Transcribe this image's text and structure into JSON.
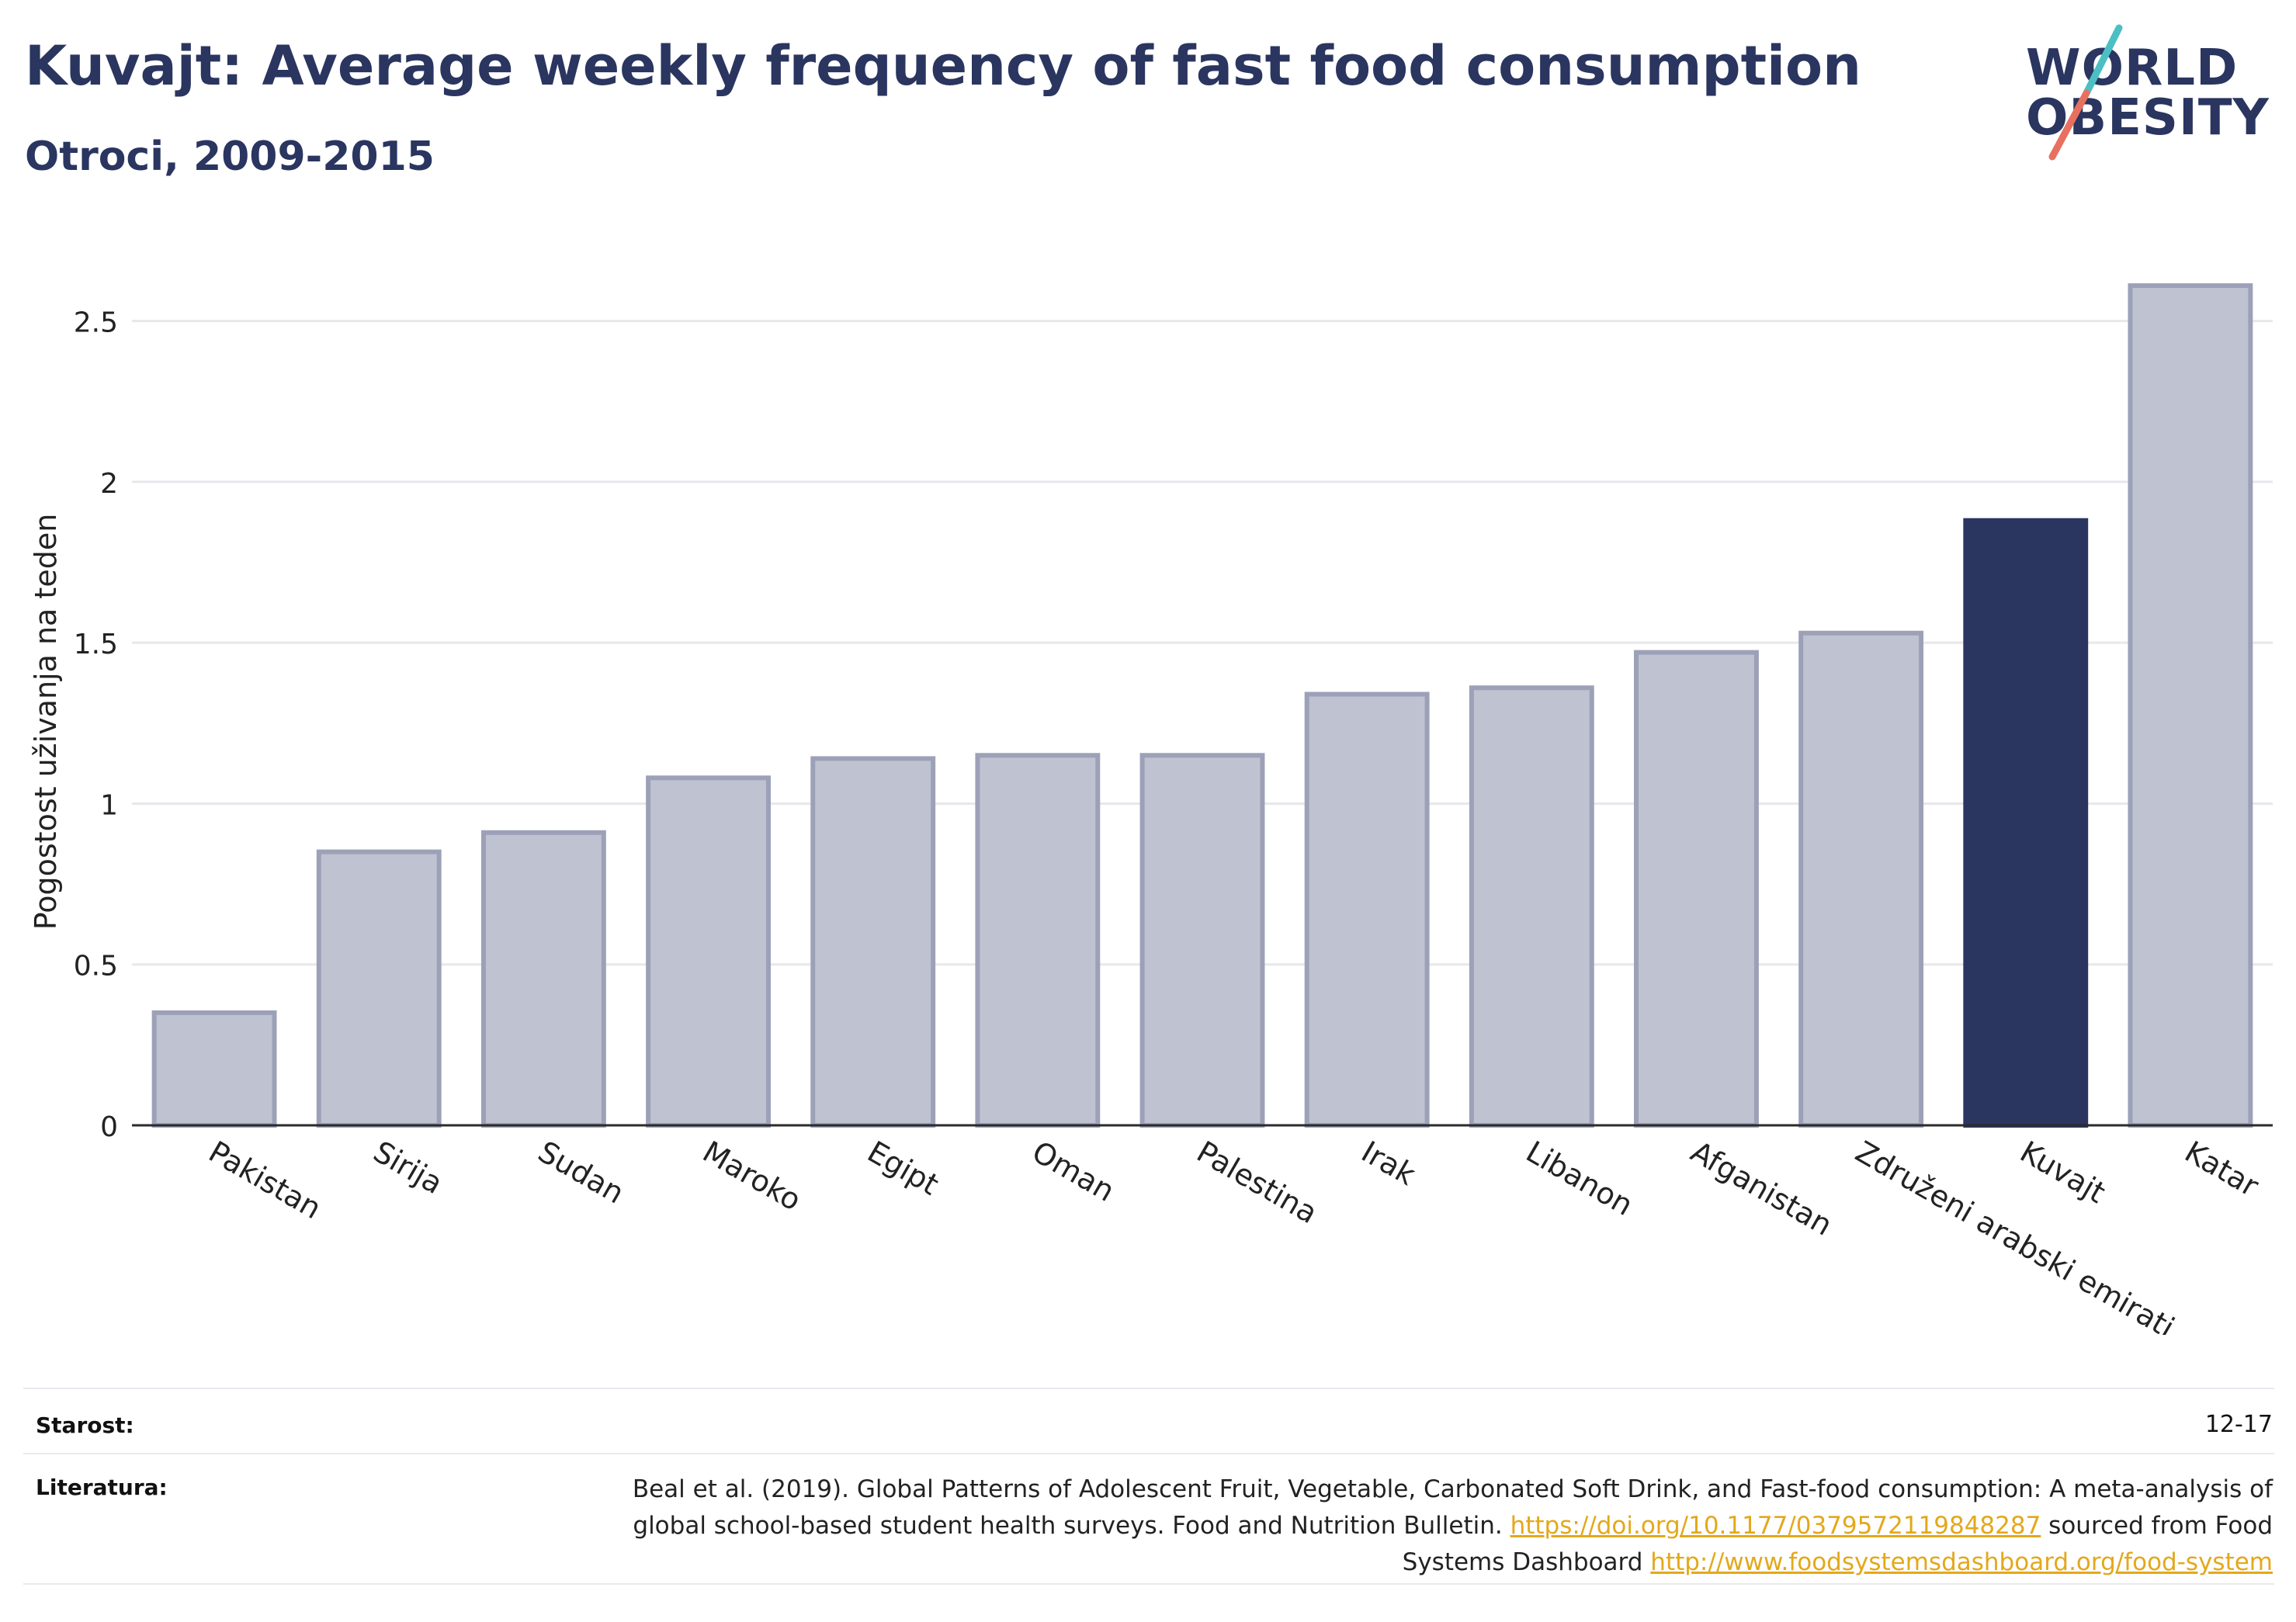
{
  "header": {
    "title": "Kuvajt: Average weekly frequency of fast food consumption",
    "subtitle": "Otroci, 2009-2015"
  },
  "logo": {
    "line1": "WORLD",
    "line2": "OBESITY"
  },
  "colors": {
    "highlight": "#2a3560",
    "bar_fill": "#bfc2d0",
    "bar_stroke": "#9ca1b8",
    "grid": "#e8e8ec",
    "logo_slash_top": "#4bbfc4",
    "logo_slash_bottom": "#e8705f"
  },
  "chart_data": {
    "type": "bar",
    "ylabel": "Pogostost uživanja na teden",
    "categories": [
      "Pakistan",
      "Sirija",
      "Sudan",
      "Maroko",
      "Egipt",
      "Oman",
      "Palestina",
      "Irak",
      "Libanon",
      "Afganistan",
      "Združeni arabski emirati",
      "Kuvajt",
      "Katar"
    ],
    "values": [
      0.35,
      0.85,
      0.91,
      1.08,
      1.14,
      1.15,
      1.15,
      1.34,
      1.36,
      1.47,
      1.53,
      1.88,
      2.61
    ],
    "highlight": "Kuvajt",
    "ylim": [
      0,
      2.75
    ],
    "yticks": [
      0,
      0.5,
      1,
      1.5,
      2,
      2.5
    ],
    "ytick_labels": [
      "0",
      "0.5",
      "1",
      "1.5",
      "2",
      "2.5"
    ],
    "grid": true,
    "legend": "none"
  },
  "footer": {
    "age_label": "Starost:",
    "age_value": "12-17",
    "ref_label": "Literatura:",
    "ref_text_1": "Beal et al. (2019). Global Patterns of Adolescent Fruit, Vegetable, Carbonated Soft Drink, and Fast-food consumption: A meta-analysis of global school-based student health surveys. Food and Nutrition Bulletin. ",
    "ref_link_1": "https://doi.org/10.1177/0379572119848287",
    "ref_text_2": " sourced from Food Systems Dashboard ",
    "ref_link_2": "http://www.foodsystemsdashboard.org/food-system"
  }
}
